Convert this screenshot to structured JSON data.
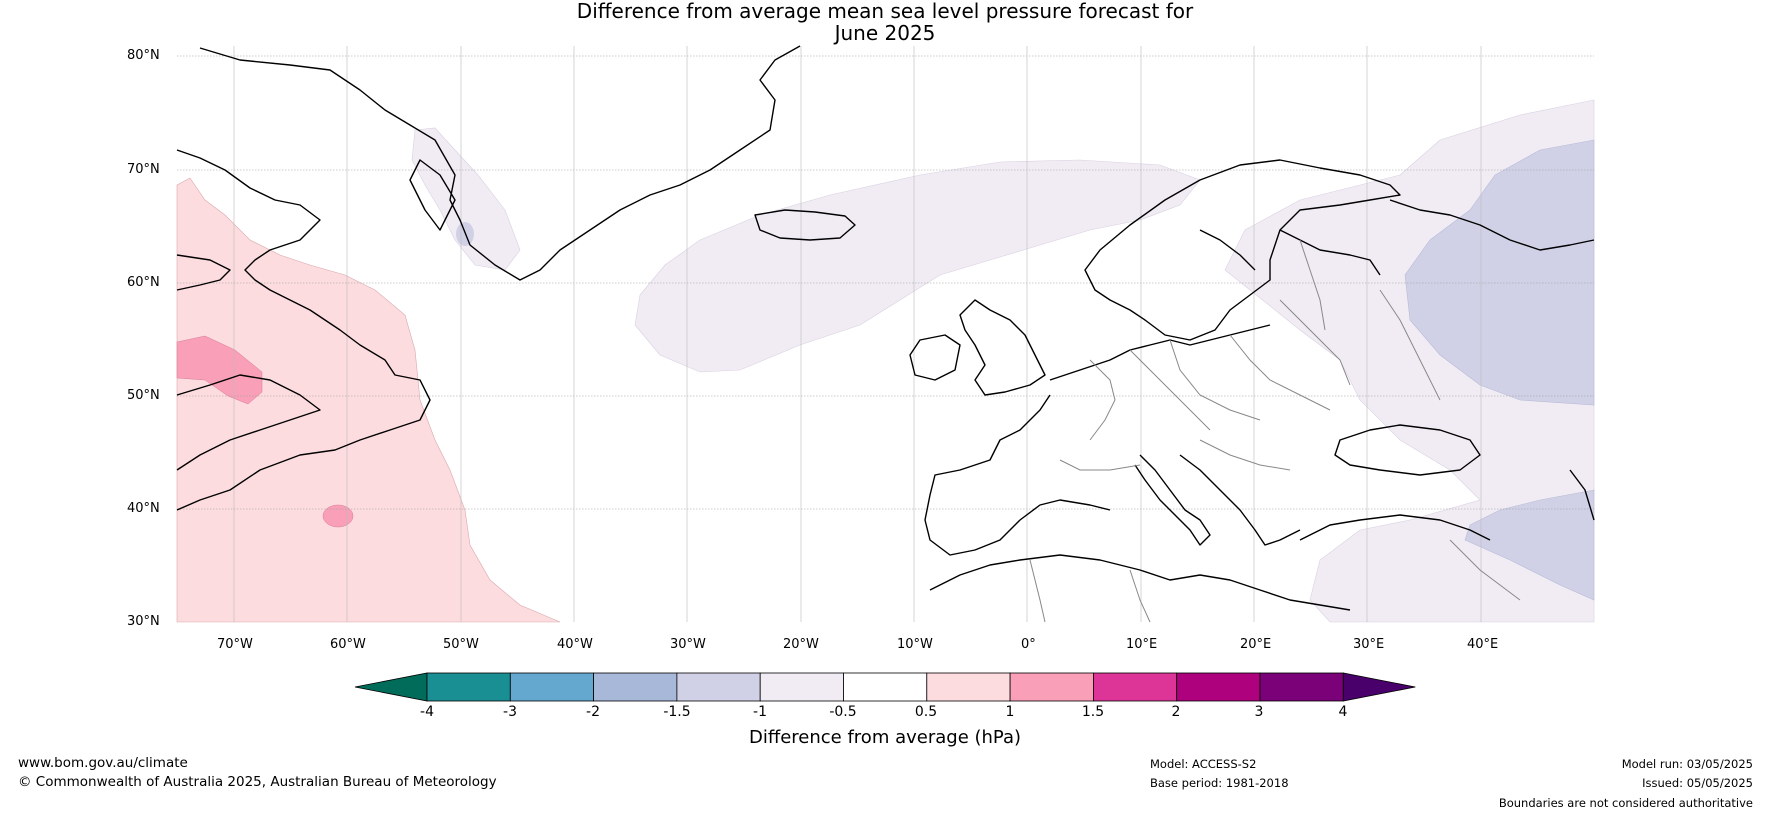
{
  "title": {
    "line1": "Difference from average mean sea level pressure forecast for",
    "line2": "June 2025"
  },
  "map": {
    "lat_labels": [
      "80°N",
      "70°N",
      "60°N",
      "50°N",
      "40°N",
      "30°N"
    ],
    "lon_labels": [
      "70°W",
      "60°W",
      "50°W",
      "40°W",
      "30°W",
      "20°W",
      "10°W",
      "0°",
      "10°E",
      "20°E",
      "30°E",
      "40°E"
    ]
  },
  "colorbar": {
    "label": "Difference from average (hPa)",
    "ticks": [
      "-4",
      "-3",
      "-2",
      "-1.5",
      "-1",
      "-0.5",
      "0.5",
      "1",
      "1.5",
      "2",
      "3",
      "4"
    ],
    "colors": [
      "#1a8f93",
      "#64a8d0",
      "#a7b8d8",
      "#d0d1e6",
      "#f1ecf4",
      "#ffffff",
      "#fcdcde",
      "#f9a0b8",
      "#dd3497",
      "#ae017e",
      "#7a0177"
    ],
    "under_color": "#016c59",
    "over_color": "#49006a"
  },
  "footer": {
    "url": "www.bom.gov.au/climate",
    "copyright": "© Commonwealth of Australia 2025, Australian Bureau of Meteorology",
    "model": "Model: ACCESS-S2",
    "base_period": "Base period: 1981-2018",
    "model_run": "Model run: 03/05/2025",
    "issued": "Issued: 05/05/2025",
    "disclaimer": "Boundaries are not considered authoritative"
  }
}
